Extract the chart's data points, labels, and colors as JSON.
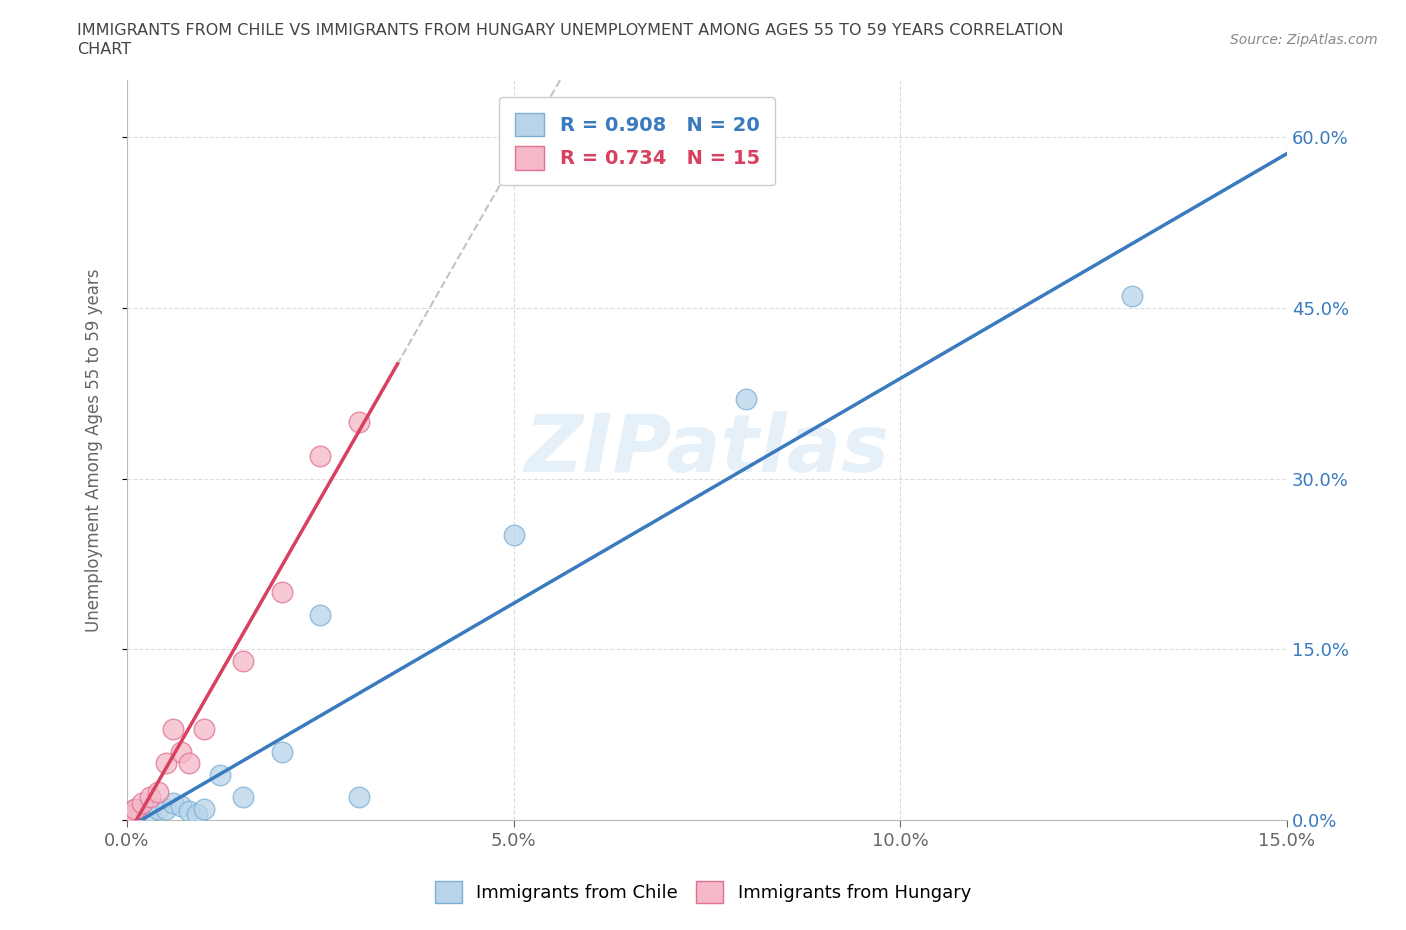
{
  "title_line1": "IMMIGRANTS FROM CHILE VS IMMIGRANTS FROM HUNGARY UNEMPLOYMENT AMONG AGES 55 TO 59 YEARS CORRELATION",
  "title_line2": "CHART",
  "source": "Source: ZipAtlas.com",
  "ylabel": "Unemployment Among Ages 55 to 59 years",
  "xlim": [
    0.0,
    0.15
  ],
  "ylim": [
    0.0,
    0.65
  ],
  "x_ticks": [
    0.0,
    0.05,
    0.1,
    0.15
  ],
  "y_ticks": [
    0.0,
    0.15,
    0.3,
    0.45,
    0.6
  ],
  "x_tick_labels": [
    "0.0%",
    "5.0%",
    "10.0%",
    "15.0%"
  ],
  "y_tick_labels": [
    "0.0%",
    "15.0%",
    "30.0%",
    "45.0%",
    "60.0%"
  ],
  "chile_color": "#b8d4ea",
  "hungary_color": "#f5b8c8",
  "chile_edge": "#7bafd4",
  "hungary_edge": "#e07090",
  "trendline_chile_color": "#3a7abf",
  "trendline_hungary_color": "#d94060",
  "R_chile": 0.908,
  "N_chile": 20,
  "R_hungary": 0.734,
  "N_hungary": 15,
  "watermark": "ZIPatlas",
  "chile_x": [
    0.0,
    0.001,
    0.001,
    0.002,
    0.003,
    0.004,
    0.005,
    0.006,
    0.007,
    0.008,
    0.009,
    0.01,
    0.012,
    0.015,
    0.02,
    0.025,
    0.03,
    0.05,
    0.08,
    0.13
  ],
  "chile_y": [
    0.005,
    0.005,
    0.01,
    0.01,
    0.008,
    0.01,
    0.01,
    0.015,
    0.012,
    0.008,
    0.005,
    0.01,
    0.04,
    0.02,
    0.06,
    0.18,
    0.02,
    0.25,
    0.37,
    0.46
  ],
  "hungary_x": [
    0.0,
    0.001,
    0.001,
    0.002,
    0.003,
    0.004,
    0.005,
    0.006,
    0.007,
    0.008,
    0.01,
    0.015,
    0.02,
    0.025,
    0.03
  ],
  "hungary_y": [
    0.005,
    0.005,
    0.01,
    0.015,
    0.02,
    0.025,
    0.05,
    0.08,
    0.06,
    0.05,
    0.08,
    0.14,
    0.2,
    0.32,
    0.35
  ],
  "background_color": "#ffffff",
  "grid_color": "#dddddd",
  "ytick_color": "#3a7abf",
  "xtick_color": "#666666",
  "axis_label_color": "#666666"
}
